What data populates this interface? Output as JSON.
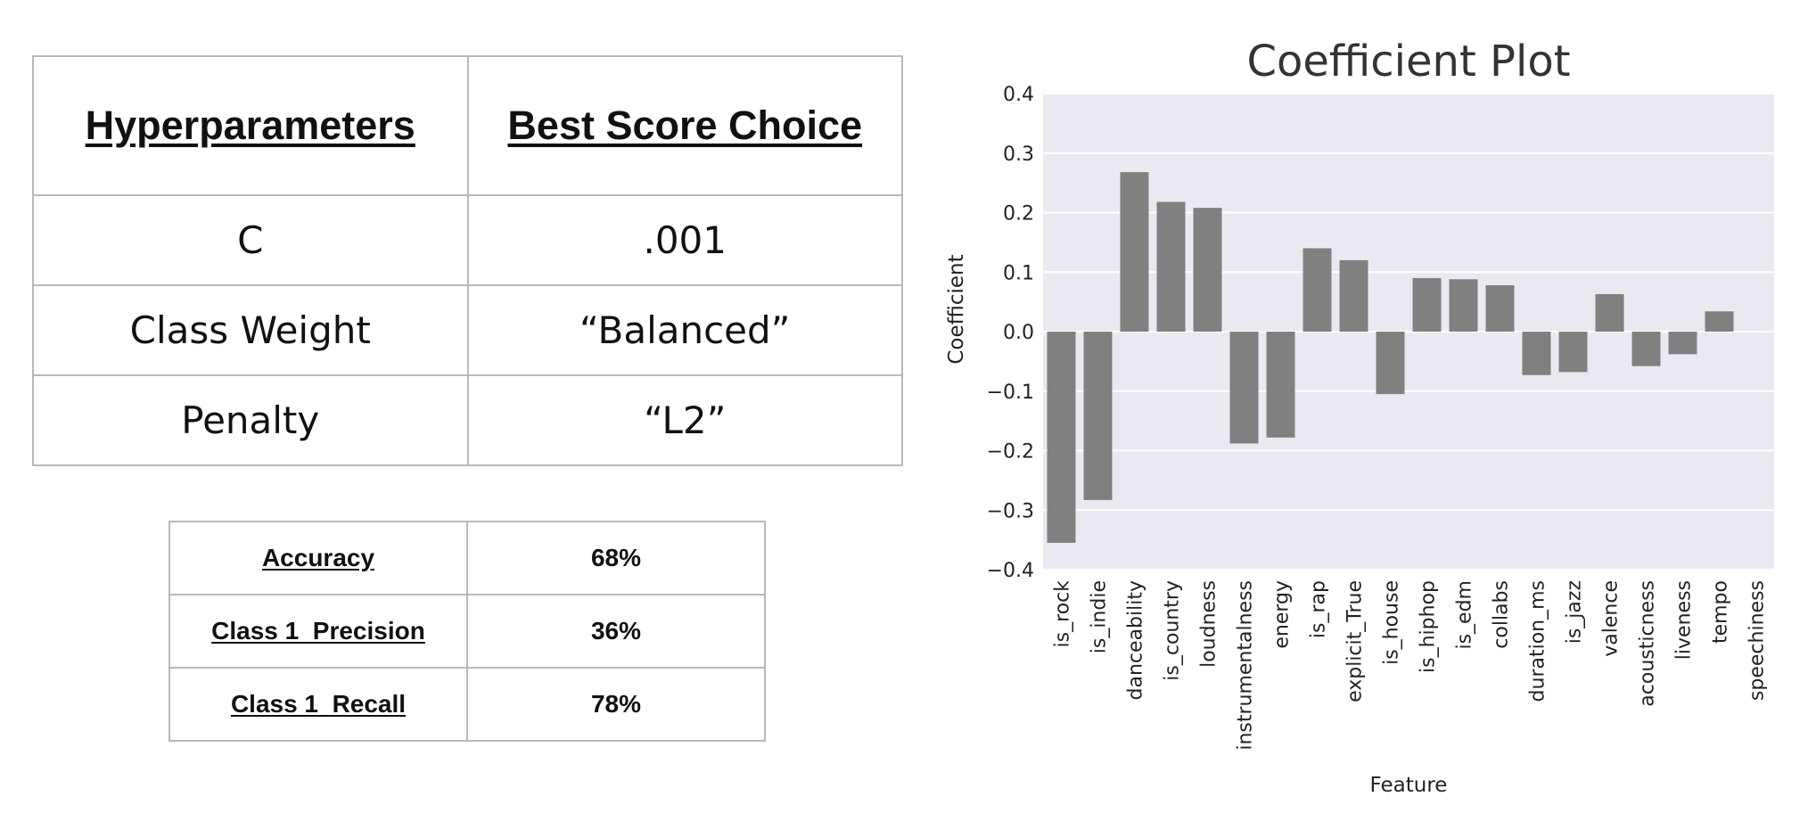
{
  "hyperparameters_table": {
    "headers": [
      "Hyperparameters",
      "Best Score Choice"
    ],
    "rows": [
      [
        "C",
        ".001"
      ],
      [
        "Class Weight",
        "“Balanced”"
      ],
      [
        "Penalty",
        "“L2”"
      ]
    ]
  },
  "metrics_table": {
    "rows": [
      [
        "Accuracy",
        "68%"
      ],
      [
        "Class 1  Precision",
        "36%"
      ],
      [
        "Class 1  Recall",
        "78%"
      ]
    ]
  },
  "chart_data": {
    "type": "bar",
    "title": "Coefficient Plot",
    "xlabel": "Feature",
    "ylabel": "Coefficient",
    "ylim": [
      -0.4,
      0.4
    ],
    "yticks": [
      0.4,
      0.3,
      0.2,
      0.1,
      0.0,
      -0.1,
      -0.2,
      -0.3,
      -0.4
    ],
    "ytick_labels": [
      "0.4",
      "0.3",
      "0.2",
      "0.1",
      "0.0",
      "−0.1",
      "−0.2",
      "−0.3",
      "−0.4"
    ],
    "grid": true,
    "categories": [
      "is_rock",
      "is_indie",
      "danceability",
      "is_country",
      "loudness",
      "instrumentalness",
      "energy",
      "is_rap",
      "explicit_True",
      "is_house",
      "is_hiphop",
      "is_edm",
      "collabs",
      "duration_ms",
      "is_jazz",
      "valence",
      "acousticness",
      "liveness",
      "tempo",
      "speechiness"
    ],
    "values": [
      -0.355,
      -0.283,
      0.268,
      0.218,
      0.208,
      -0.188,
      -0.178,
      0.14,
      0.12,
      -0.105,
      0.09,
      0.088,
      0.078,
      -0.073,
      -0.068,
      0.063,
      -0.058,
      -0.038,
      0.034,
      0.0
    ],
    "colors": {
      "bar": "#808080",
      "plot_bg": "#e9e9f1",
      "grid": "#ffffff"
    }
  }
}
